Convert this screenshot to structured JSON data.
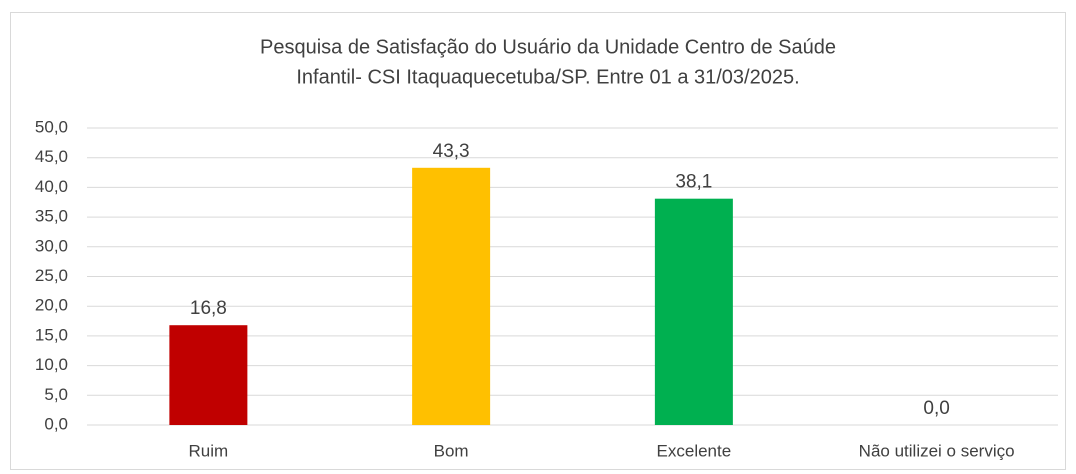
{
  "chart_data": {
    "type": "bar",
    "title": [
      "Pesquisa de Satisfação do Usuário da Unidade Centro de Saúde",
      "Infantil- CSI  Itaquaquecetuba/SP. Entre 01 a 31/03/2025."
    ],
    "categories": [
      "Ruim",
      "Bom",
      "Excelente",
      "Não utilizei o serviço"
    ],
    "values": [
      16.8,
      43.3,
      38.1,
      0
    ],
    "value_labels": [
      "16,8",
      "43,3",
      "38,1",
      "0,0"
    ],
    "colors": [
      "#c00000",
      "#ffc000",
      "#00b050",
      null
    ],
    "ylim": [
      0,
      50
    ],
    "yticks": [
      {
        "value": 0,
        "label": "0,0"
      },
      {
        "value": 5,
        "label": "5,0"
      },
      {
        "value": 10,
        "label": "10,0"
      },
      {
        "value": 15,
        "label": "15,0"
      },
      {
        "value": 20,
        "label": "20,0"
      },
      {
        "value": 25,
        "label": "25,0"
      },
      {
        "value": 30,
        "label": "30,0"
      },
      {
        "value": 35,
        "label": "35,0"
      },
      {
        "value": 40,
        "label": "40,0"
      },
      {
        "value": 45,
        "label": "45,0"
      },
      {
        "value": 50,
        "label": "50,0"
      }
    ],
    "grid": true
  }
}
